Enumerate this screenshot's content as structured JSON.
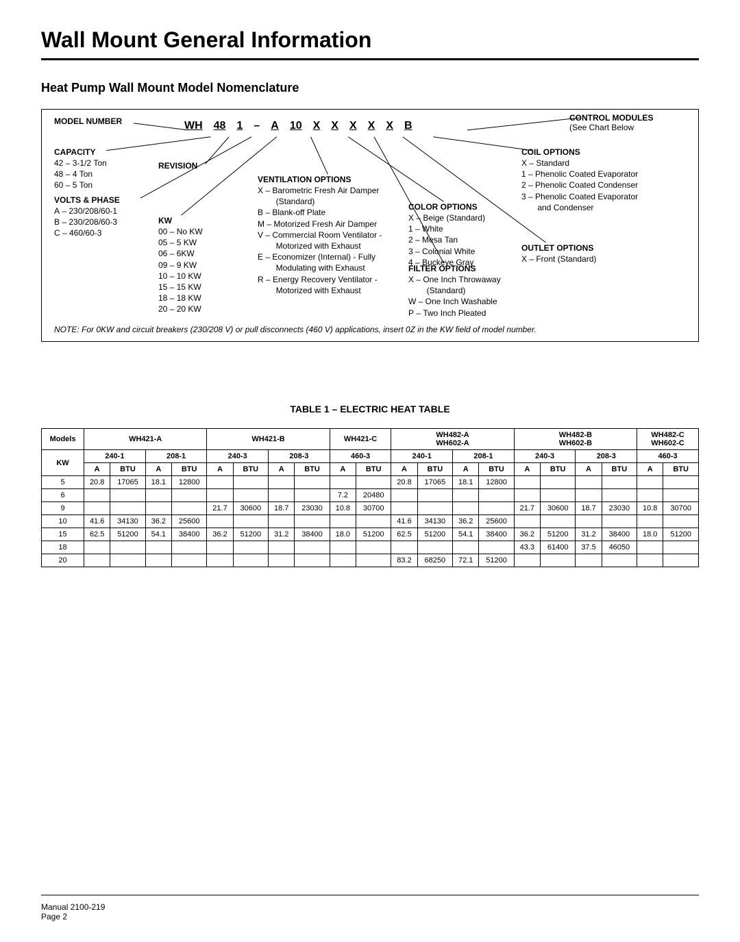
{
  "page": {
    "main_title": "Wall Mount General Information",
    "sub_title": "Heat Pump Wall Mount Model Nomenclature",
    "table_title": "TABLE 1 – ELECTRIC HEAT TABLE",
    "manual_line": "Manual   2100-219",
    "page_line": "Page   2"
  },
  "model": {
    "parts": [
      "WH",
      "48",
      "1",
      "–",
      "A",
      "10",
      "X",
      "X",
      "X",
      "X",
      "X",
      "B"
    ]
  },
  "labels": {
    "model_number": "MODEL NUMBER",
    "capacity": "CAPACITY",
    "revision": "REVISION",
    "volts_phase": "VOLTS & PHASE",
    "kw": "KW",
    "ventilation": "VENTILATION OPTIONS",
    "color": "COLOR OPTIONS",
    "filter": "FILTER OPTIONS",
    "outlet": "OUTLET OPTIONS",
    "coil": "COIL OPTIONS",
    "control": "CONTROL MODULES",
    "control_sub": "(See Chart Below"
  },
  "capacity_items": [
    "42 – 3-1/2 Ton",
    "48 – 4 Ton",
    "60 – 5 Ton"
  ],
  "volts_items": [
    "A – 230/208/60-1",
    "B – 230/208/60-3",
    "C – 460/60-3"
  ],
  "kw_items": [
    "00 – No KW",
    "05 – 5 KW",
    "06 – 6KW",
    "09 – 9 KW",
    "10 – 10 KW",
    "15 – 15 KW",
    "18 – 18 KW",
    "20 – 20 KW"
  ],
  "vent_items": [
    "X – Barometric Fresh Air Damper",
    "        (Standard)",
    "B – Blank-off Plate",
    "M – Motorized Fresh Air Damper",
    "V – Commercial Room Ventilator -",
    "        Motorized with Exhaust",
    "E – Economizer (Internal) - Fully",
    "        Modulating with Exhaust",
    "R – Energy Recovery Ventilator -",
    "        Motorized with Exhaust"
  ],
  "color_items": [
    "X – Beige (Standard)",
    "1 – White",
    "2 – Mesa Tan",
    "3 – Colonial White",
    "4 – Buckeye Gray"
  ],
  "filter_items": [
    "X – One Inch Throwaway",
    "        (Standard)",
    "W – One Inch Washable",
    "P – Two Inch Pleated"
  ],
  "outlet_items": [
    "X – Front (Standard)"
  ],
  "coil_items": [
    "X – Standard",
    "1 – Phenolic Coated Evaporator",
    "2 – Phenolic Coated Condenser",
    "3 – Phenolic Coated Evaporator",
    "       and Condenser"
  ],
  "note": "NOTE: For 0KW and circuit breakers (230/208 V) or pull disconnects (460 V) applications, insert 0Z in the KW field of model number.",
  "table": {
    "models_head": "Models",
    "kw_head": "KW",
    "group_headers": [
      "WH421-A",
      "WH421-B",
      "WH421-C",
      "WH482-A\nWH602-A",
      "WH482-B\nWH602-B",
      "WH482-C\nWH602-C"
    ],
    "group_spans": [
      4,
      4,
      2,
      4,
      4,
      2
    ],
    "volt_headers": [
      "240-1",
      "208-1",
      "240-3",
      "208-3",
      "460-3",
      "240-1",
      "208-1",
      "240-3",
      "208-3",
      "460-3"
    ],
    "sub_headers": [
      "A",
      "BTU",
      "A",
      "BTU",
      "A",
      "BTU",
      "A",
      "BTU",
      "A",
      "BTU",
      "A",
      "BTU",
      "A",
      "BTU",
      "A",
      "BTU",
      "A",
      "BTU",
      "A",
      "BTU"
    ],
    "rows": [
      {
        "kw": "5",
        "cells": [
          "20.8",
          "17065",
          "18.1",
          "12800",
          "",
          "",
          "",
          "",
          "",
          "",
          "20.8",
          "17065",
          "18.1",
          "12800",
          "",
          "",
          "",
          "",
          "",
          ""
        ]
      },
      {
        "kw": "6",
        "cells": [
          "",
          "",
          "",
          "",
          "",
          "",
          "",
          "",
          "7.2",
          "20480",
          "",
          "",
          "",
          "",
          "",
          "",
          "",
          "",
          "",
          ""
        ]
      },
      {
        "kw": "9",
        "cells": [
          "",
          "",
          "",
          "",
          "21.7",
          "30600",
          "18.7",
          "23030",
          "10.8",
          "30700",
          "",
          "",
          "",
          "",
          "21.7",
          "30600",
          "18.7",
          "23030",
          "10.8",
          "30700"
        ]
      },
      {
        "kw": "10",
        "cells": [
          "41.6",
          "34130",
          "36.2",
          "25600",
          "",
          "",
          "",
          "",
          "",
          "",
          "41.6",
          "34130",
          "36.2",
          "25600",
          "",
          "",
          "",
          "",
          "",
          ""
        ]
      },
      {
        "kw": "15",
        "cells": [
          "62.5",
          "51200",
          "54.1",
          "38400",
          "36.2",
          "51200",
          "31.2",
          "38400",
          "18.0",
          "51200",
          "62.5",
          "51200",
          "54.1",
          "38400",
          "36.2",
          "51200",
          "31.2",
          "38400",
          "18.0",
          "51200"
        ]
      },
      {
        "kw": "18",
        "cells": [
          "",
          "",
          "",
          "",
          "",
          "",
          "",
          "",
          "",
          "",
          "",
          "",
          "",
          "",
          "43.3",
          "61400",
          "37.5",
          "46050",
          "",
          ""
        ]
      },
      {
        "kw": "20",
        "cells": [
          "",
          "",
          "",
          "",
          "",
          "",
          "",
          "",
          "",
          "",
          "83.2",
          "68250",
          "72.1",
          "51200",
          "",
          "",
          "",
          "",
          "",
          ""
        ]
      }
    ]
  }
}
